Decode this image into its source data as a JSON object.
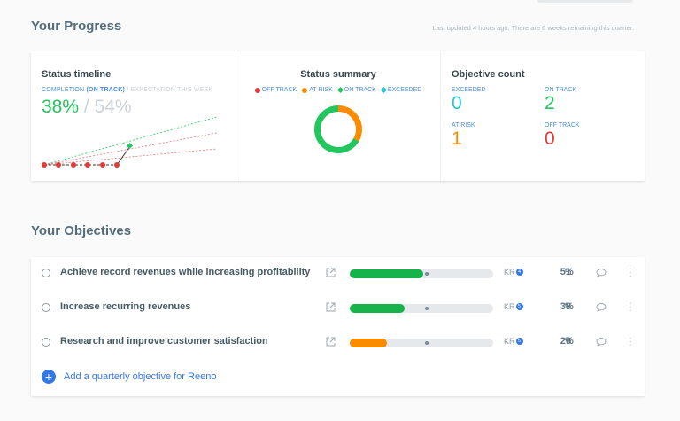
{
  "progress": {
    "title": "Your Progress",
    "last_updated": "Last updated 4 hours ago. There are 6 weeks remaining this quarter.",
    "timeline": {
      "title": "Status timeline",
      "completion_prefix": "COMPLETION ",
      "completion_status": "(ON TRACK)",
      "expectation_label": " / EXPECTATION THIS WEEK",
      "completion_value": "38%",
      "expectation_value": " / 54%"
    },
    "summary": {
      "title": "Status summary",
      "legend": [
        {
          "label": "OFF TRACK",
          "color": "#e53935",
          "shape": "dot"
        },
        {
          "label": "AT RISK",
          "color": "#fb8c00",
          "shape": "dot"
        },
        {
          "label": "ON TRACK",
          "color": "#22c55e",
          "shape": "diamond"
        },
        {
          "label": "EXCEEDED",
          "color": "#26c6da",
          "shape": "diamond"
        }
      ],
      "donut": {
        "on_track": 2,
        "at_risk": 1,
        "off_track": 0,
        "exceeded": 0
      }
    },
    "count": {
      "title": "Objective count",
      "exceeded_label": "EXCEEDED",
      "exceeded_value": "0",
      "on_track_label": "ON TRACK",
      "on_track_value": "2",
      "at_risk_label": "AT RISK",
      "at_risk_value": "1",
      "off_track_label": "OFF TRACK",
      "off_track_value": "0"
    }
  },
  "objectives": {
    "title": "Your Objectives",
    "items": [
      {
        "title": "Achieve record revenues while increasing profitability",
        "progress": 0.51,
        "expected": 0.54,
        "color": "#16b24a",
        "kr_label": "KR",
        "kr_count": "4",
        "pct": "51",
        "pct_sign": "%"
      },
      {
        "title": "Increase recurring revenues",
        "progress": 0.38,
        "expected": 0.54,
        "color": "#16b24a",
        "kr_label": "KR",
        "kr_count": "5",
        "pct": "38",
        "pct_sign": "%"
      },
      {
        "title": "Research and improve customer satisfaction",
        "progress": 0.26,
        "expected": 0.54,
        "color": "#fb8c00",
        "kr_label": "KR",
        "kr_count": "5",
        "pct": "26",
        "pct_sign": "%"
      }
    ],
    "add_label": "Add a quarterly objective for Reeno"
  },
  "colors": {
    "on_track": "#22c55e",
    "at_risk": "#fb8c00",
    "off_track": "#e53935",
    "exceeded": "#26c6da",
    "accent": "#3478e6"
  }
}
